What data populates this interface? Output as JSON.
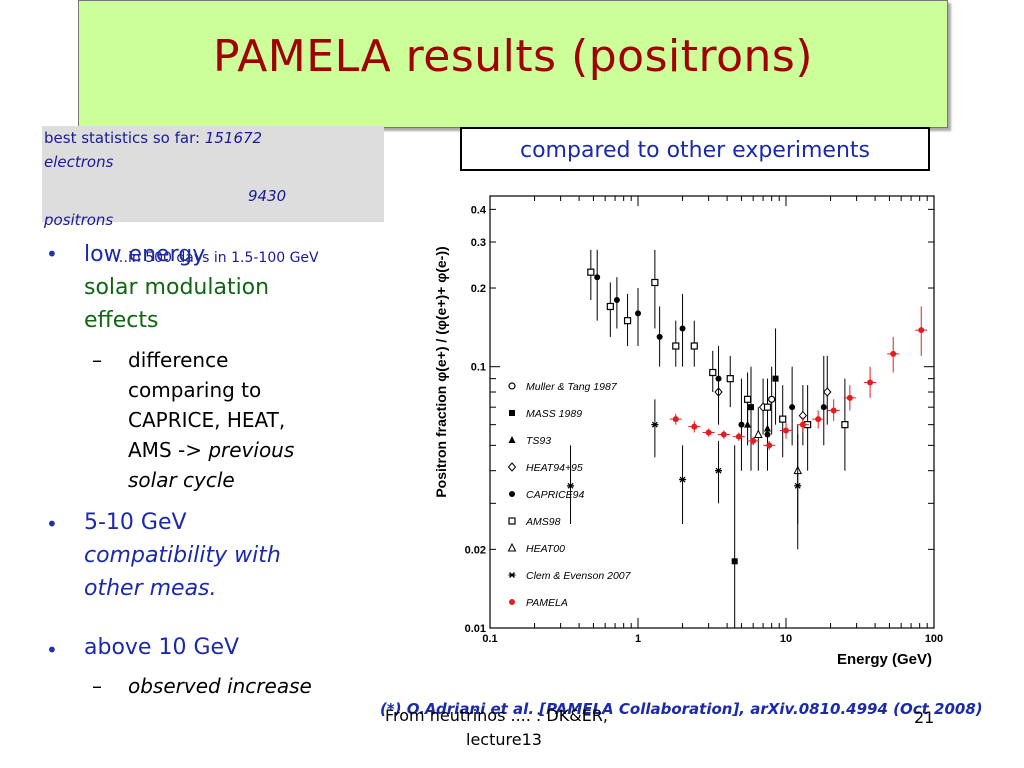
{
  "title": "PAMELA  results (positrons)",
  "stats": {
    "line1_label": "best statistics so far: ",
    "line1_value": "151672",
    "line2": "electrons",
    "line3_value": "9430",
    "line4": "positrons",
    "line5": "…in 500 days in 1.5-100 GeV"
  },
  "compare_label": "compared to other experiments",
  "bullets": {
    "b1_line1": "low energy",
    "b1_line2": "solar modulation",
    "b1_line3": "effects",
    "b1_sub_prefix": "difference",
    "b1_sub_line2": "comparing to",
    "b1_sub_line3": "CAPRICE, HEAT,",
    "b1_sub_line4_a": "AMS -> ",
    "b1_sub_line4_b": "previous",
    "b1_sub_line5": "solar cycle",
    "b2_line1": "5-10 GeV",
    "b2_line2": "compatibility with",
    "b2_line3": "other meas.",
    "b3_line1": "above 10 GeV",
    "b3_sub": "observed increase",
    "dash": "–",
    "dot": "•"
  },
  "reference": "(*) O.Adriani et al. [PAMELA Collaboration], arXiv.0810.4994 (Oct 2008)",
  "footer": {
    "left_line1": "From neutrinos .... : DK&ER,",
    "left_line2": "lecture13",
    "page": "21"
  },
  "colors": {
    "title": "#a00000",
    "title_bg": "#ccff99",
    "blue_text": "#1a2aaa",
    "green_text": "#116611",
    "pamela": "#e02020"
  },
  "chart_data": {
    "type": "scatter",
    "xscale": "log",
    "yscale": "log",
    "xlim": [
      0.1,
      100
    ],
    "ylim": [
      0.01,
      0.45
    ],
    "xlabel": "Energy (GeV)",
    "ylabel": "Positron fraction   φ(e+) / (φ(e+)+ φ(e-))",
    "x_ticks": [
      "0.1",
      "1",
      "10",
      "100"
    ],
    "y_ticks": [
      "0.01",
      "0.02",
      "0.1",
      "0.2",
      "0.3",
      "0.4"
    ],
    "legend_position": "left-inside",
    "series": [
      {
        "name": "Muller & Tang 1987",
        "marker": "open-circle",
        "points": [
          [
            8,
            0.075,
            0.055,
            0.1
          ]
        ]
      },
      {
        "name": "MASS 1989",
        "marker": "filled-square",
        "points": [
          [
            4.5,
            0.018,
            0.01,
            0.05
          ],
          [
            5.8,
            0.07,
            0.04,
            0.1
          ],
          [
            8.5,
            0.09,
            0.06,
            0.14
          ]
        ]
      },
      {
        "name": "TS93",
        "marker": "filled-triangle",
        "points": [
          [
            5.5,
            0.06,
            0.05,
            0.075
          ],
          [
            7.5,
            0.058,
            0.045,
            0.075
          ]
        ]
      },
      {
        "name": "HEAT94+95",
        "marker": "diamond",
        "points": [
          [
            3.5,
            0.08,
            0.06,
            0.1
          ],
          [
            7.0,
            0.07,
            0.055,
            0.09
          ],
          [
            13,
            0.065,
            0.05,
            0.085
          ],
          [
            19,
            0.08,
            0.06,
            0.11
          ]
        ]
      },
      {
        "name": "CAPRICE94",
        "marker": "filled-circle",
        "points": [
          [
            0.53,
            0.22,
            0.15,
            0.28
          ],
          [
            0.72,
            0.18,
            0.14,
            0.22
          ],
          [
            1.0,
            0.16,
            0.12,
            0.2
          ],
          [
            1.4,
            0.13,
            0.1,
            0.17
          ],
          [
            2.0,
            0.14,
            0.1,
            0.19
          ],
          [
            3.5,
            0.09,
            0.07,
            0.12
          ],
          [
            5.0,
            0.06,
            0.04,
            0.09
          ],
          [
            7.5,
            0.055,
            0.04,
            0.075
          ],
          [
            11,
            0.07,
            0.05,
            0.1
          ],
          [
            18,
            0.07,
            0.05,
            0.11
          ]
        ]
      },
      {
        "name": "AMS98",
        "marker": "open-square",
        "points": [
          [
            0.48,
            0.23,
            0.18,
            0.28
          ],
          [
            0.65,
            0.17,
            0.13,
            0.21
          ],
          [
            0.85,
            0.15,
            0.12,
            0.19
          ],
          [
            1.3,
            0.21,
            0.14,
            0.28
          ],
          [
            1.8,
            0.12,
            0.1,
            0.15
          ],
          [
            2.4,
            0.12,
            0.1,
            0.15
          ],
          [
            3.2,
            0.095,
            0.08,
            0.115
          ],
          [
            4.2,
            0.09,
            0.07,
            0.11
          ],
          [
            5.5,
            0.075,
            0.06,
            0.095
          ],
          [
            7.5,
            0.07,
            0.055,
            0.09
          ],
          [
            9.5,
            0.063,
            0.045,
            0.085
          ],
          [
            14,
            0.06,
            0.04,
            0.085
          ],
          [
            25,
            0.06,
            0.04,
            0.09
          ]
        ]
      },
      {
        "name": "HEAT00",
        "marker": "open-triangle",
        "points": [
          [
            6.5,
            0.055,
            0.04,
            0.07
          ],
          [
            12,
            0.04,
            0.025,
            0.06
          ]
        ]
      },
      {
        "name": "Clem & Evenson 2007",
        "marker": "star",
        "points": [
          [
            0.35,
            0.035,
            0.025,
            0.05
          ],
          [
            1.3,
            0.06,
            0.045,
            0.075
          ],
          [
            2.0,
            0.037,
            0.025,
            0.05
          ],
          [
            3.5,
            0.04,
            0.03,
            0.052
          ],
          [
            12,
            0.035,
            0.02,
            0.055
          ]
        ]
      },
      {
        "name": "PAMELA",
        "marker": "red-filled-circle",
        "points": [
          [
            1.8,
            0.063,
            0.06,
            0.066
          ],
          [
            2.4,
            0.059,
            0.056,
            0.062
          ],
          [
            3.0,
            0.056,
            0.054,
            0.058
          ],
          [
            3.8,
            0.055,
            0.053,
            0.057
          ],
          [
            4.8,
            0.054,
            0.052,
            0.056
          ],
          [
            6.0,
            0.052,
            0.05,
            0.054
          ],
          [
            7.7,
            0.05,
            0.048,
            0.052
          ],
          [
            10,
            0.057,
            0.053,
            0.061
          ],
          [
            13,
            0.06,
            0.056,
            0.064
          ],
          [
            16.5,
            0.063,
            0.058,
            0.068
          ],
          [
            21,
            0.068,
            0.062,
            0.075
          ],
          [
            27,
            0.076,
            0.068,
            0.085
          ],
          [
            37,
            0.087,
            0.076,
            0.1
          ],
          [
            53,
            0.112,
            0.095,
            0.13
          ],
          [
            82,
            0.138,
            0.11,
            0.17
          ]
        ]
      }
    ]
  }
}
